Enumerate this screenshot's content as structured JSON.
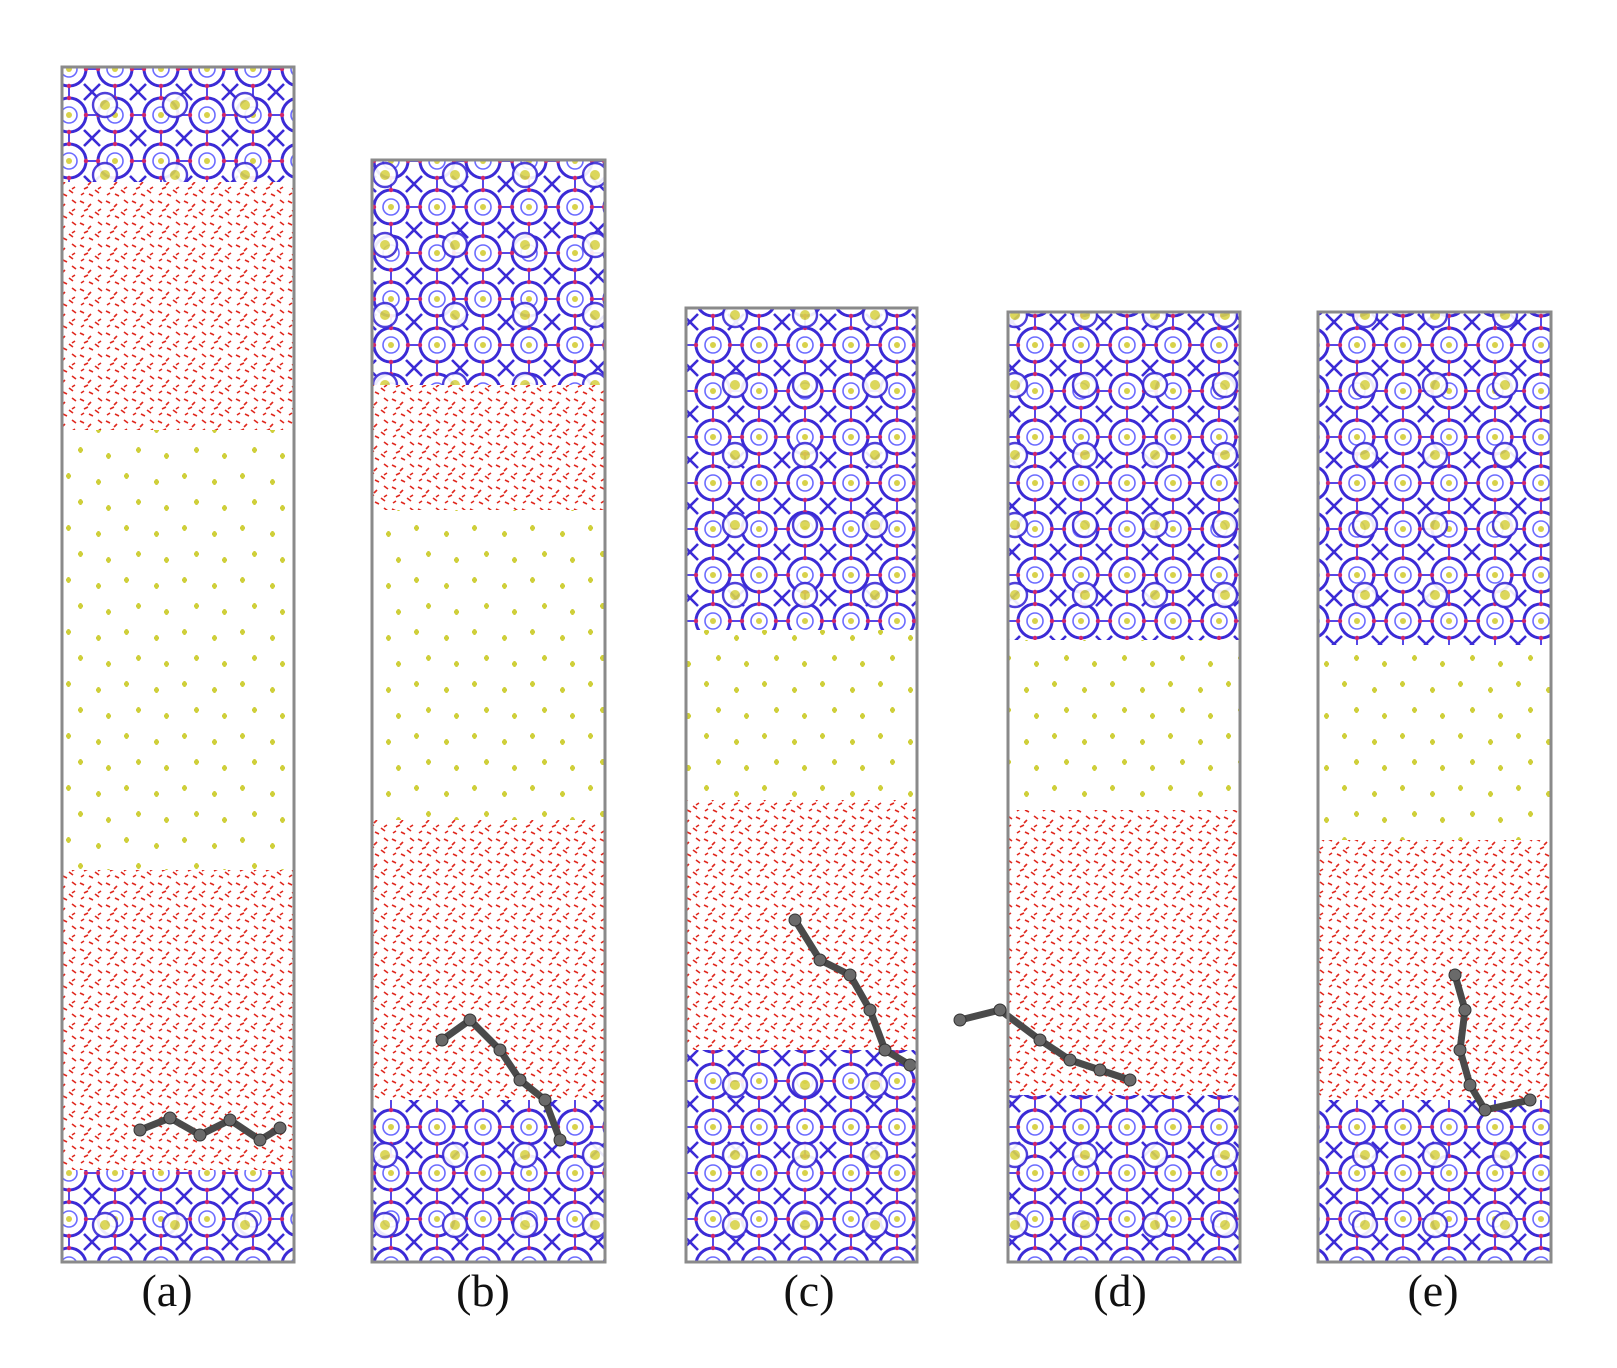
{
  "figure": {
    "panels": [
      {
        "label": "(a)"
      },
      {
        "label": "(b)"
      },
      {
        "label": "(c)"
      },
      {
        "label": "(d)"
      },
      {
        "label": "(e)"
      }
    ],
    "colors": {
      "box_outline": "#8a8a8a",
      "framework_bond": "#3b2bd6",
      "framework_bond_light": "#6b6bff",
      "framework_oxygen": "#d1286b",
      "guest_in_cage": "#d8d24a",
      "water": "#e0281e",
      "gas_molecule": "#cfcf3a",
      "adsorbate_chain": "#4a4a4a",
      "background": "#ffffff"
    }
  }
}
